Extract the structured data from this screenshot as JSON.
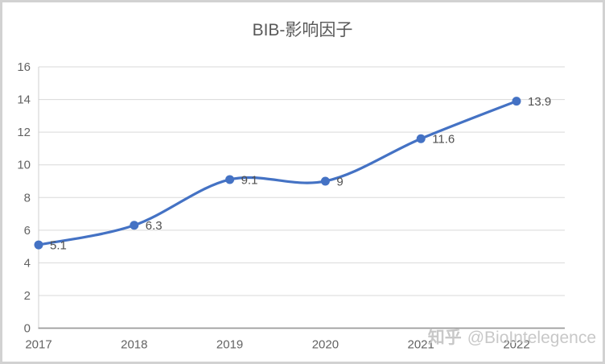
{
  "frame": {
    "border_color": "#d2d2d2",
    "background": "#ffffff"
  },
  "chart_data": {
    "type": "line",
    "title": "BIB-影响因子",
    "categories": [
      "2017",
      "2018",
      "2019",
      "2020",
      "2021",
      "2022"
    ],
    "series": [
      {
        "name": "BIB-影响因子",
        "values": [
          5.1,
          6.3,
          9.1,
          9,
          11.6,
          13.9
        ]
      }
    ],
    "data_labels_shown": [
      "5.1",
      "6.3",
      "9.1",
      "9",
      "11.6",
      "13.9"
    ],
    "y_ticks": [
      0,
      2,
      4,
      6,
      8,
      10,
      12,
      14,
      16
    ],
    "ylim": [
      0,
      16
    ],
    "smooth": true,
    "grid": true,
    "legend_position": "none",
    "colors": {
      "line": "#4472c4",
      "marker": "#4472c4",
      "gridline": "#d9d9d9",
      "plot_border": "#cfcfcf",
      "axis_line": "#9b9b9b",
      "tick_label": "#636363",
      "data_label": "#4f4f4f",
      "title": "#595959"
    }
  },
  "watermark": {
    "logo": "知乎",
    "handle": "@BioIntelegence",
    "color": "#c8c8c8"
  }
}
